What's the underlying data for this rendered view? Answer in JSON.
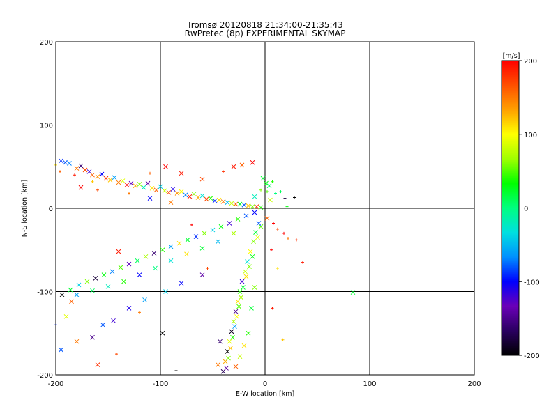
{
  "chart_data": {
    "type": "scatter",
    "title": "Tromsø 20120818 21:34:00-21:35:43",
    "subtitle": "RwPretec (8p) EXPERIMENTAL SKYMAP",
    "xlabel": "E-W location [km]",
    "ylabel": "N-S location [km]",
    "xlim": [
      -200,
      200
    ],
    "ylim": [
      -200,
      200
    ],
    "xticks": [
      -200,
      -100,
      0,
      100,
      200
    ],
    "yticks": [
      -200,
      -100,
      0,
      100,
      200
    ],
    "grid": true,
    "markers": [
      "x",
      "+"
    ],
    "colorbar": {
      "label": "[m/s]",
      "range": [
        -200,
        200
      ],
      "ticks": [
        200,
        100,
        0,
        -100,
        -200
      ],
      "colors": [
        "#000000",
        "#2a0060",
        "#6a00b8",
        "#0000ff",
        "#0090ff",
        "#00e0e0",
        "#00ff80",
        "#00ff00",
        "#a0ff00",
        "#ffff00",
        "#ffa000",
        "#ff5000",
        "#ff0000"
      ]
    },
    "points": [
      {
        "x": -195,
        "y": 57,
        "v": -90,
        "m": "x"
      },
      {
        "x": -191,
        "y": 55,
        "v": -80,
        "m": "x"
      },
      {
        "x": -187,
        "y": 54,
        "v": -70,
        "m": "x"
      },
      {
        "x": -180,
        "y": 48,
        "v": 150,
        "m": "x"
      },
      {
        "x": -176,
        "y": 51,
        "v": -160,
        "m": "x"
      },
      {
        "x": -172,
        "y": 46,
        "v": 170,
        "m": "x"
      },
      {
        "x": -168,
        "y": 44,
        "v": -120,
        "m": "x"
      },
      {
        "x": -165,
        "y": 40,
        "v": 160,
        "m": "x"
      },
      {
        "x": -160,
        "y": 38,
        "v": 140,
        "m": "x"
      },
      {
        "x": -156,
        "y": 41,
        "v": -100,
        "m": "x"
      },
      {
        "x": -152,
        "y": 36,
        "v": 180,
        "m": "x"
      },
      {
        "x": -148,
        "y": 34,
        "v": 120,
        "m": "x"
      },
      {
        "x": -144,
        "y": 37,
        "v": -60,
        "m": "x"
      },
      {
        "x": -140,
        "y": 31,
        "v": 150,
        "m": "x"
      },
      {
        "x": -136,
        "y": 33,
        "v": 90,
        "m": "x"
      },
      {
        "x": -132,
        "y": 28,
        "v": 200,
        "m": "x"
      },
      {
        "x": -128,
        "y": 30,
        "v": -130,
        "m": "x"
      },
      {
        "x": -124,
        "y": 27,
        "v": 130,
        "m": "x"
      },
      {
        "x": -120,
        "y": 29,
        "v": 60,
        "m": "x"
      },
      {
        "x": -116,
        "y": 25,
        "v": -20,
        "m": "x"
      },
      {
        "x": -112,
        "y": 30,
        "v": -140,
        "m": "x"
      },
      {
        "x": -108,
        "y": 24,
        "v": 110,
        "m": "x"
      },
      {
        "x": -104,
        "y": 22,
        "v": 160,
        "m": "x"
      },
      {
        "x": -100,
        "y": 26,
        "v": -40,
        "m": "x"
      },
      {
        "x": -96,
        "y": 21,
        "v": 80,
        "m": "x"
      },
      {
        "x": -92,
        "y": 19,
        "v": 170,
        "m": "x"
      },
      {
        "x": -88,
        "y": 23,
        "v": -110,
        "m": "x"
      },
      {
        "x": -84,
        "y": 18,
        "v": 140,
        "m": "x"
      },
      {
        "x": -80,
        "y": 20,
        "v": 100,
        "m": "x"
      },
      {
        "x": -76,
        "y": 16,
        "v": -70,
        "m": "x"
      },
      {
        "x": -72,
        "y": 14,
        "v": 190,
        "m": "x"
      },
      {
        "x": -68,
        "y": 17,
        "v": 60,
        "m": "x"
      },
      {
        "x": -64,
        "y": 13,
        "v": 130,
        "m": "x"
      },
      {
        "x": -60,
        "y": 15,
        "v": -30,
        "m": "x"
      },
      {
        "x": -56,
        "y": 11,
        "v": 170,
        "m": "x"
      },
      {
        "x": -52,
        "y": 12,
        "v": 40,
        "m": "x"
      },
      {
        "x": -48,
        "y": 9,
        "v": -90,
        "m": "x"
      },
      {
        "x": -44,
        "y": 10,
        "v": 110,
        "m": "x"
      },
      {
        "x": -40,
        "y": 8,
        "v": 150,
        "m": "x"
      },
      {
        "x": -36,
        "y": 7,
        "v": -50,
        "m": "x"
      },
      {
        "x": -32,
        "y": 6,
        "v": 80,
        "m": "x"
      },
      {
        "x": -28,
        "y": 5,
        "v": 160,
        "m": "x"
      },
      {
        "x": -24,
        "y": 5,
        "v": 20,
        "m": "x"
      },
      {
        "x": -20,
        "y": 4,
        "v": -80,
        "m": "x"
      },
      {
        "x": -16,
        "y": 3,
        "v": 120,
        "m": "x"
      },
      {
        "x": -12,
        "y": 2,
        "v": 60,
        "m": "x"
      },
      {
        "x": -8,
        "y": 2,
        "v": 180,
        "m": "x"
      },
      {
        "x": -4,
        "y": 1,
        "v": 40,
        "m": "x"
      },
      {
        "x": -200,
        "y": 52,
        "v": 110,
        "m": "+"
      },
      {
        "x": -196,
        "y": 44,
        "v": 160,
        "m": "+"
      },
      {
        "x": -182,
        "y": 40,
        "v": 190,
        "m": "+"
      },
      {
        "x": -176,
        "y": 25,
        "v": 200,
        "m": "x"
      },
      {
        "x": -160,
        "y": 22,
        "v": 170,
        "m": "+"
      },
      {
        "x": -130,
        "y": 18,
        "v": 150,
        "m": "+"
      },
      {
        "x": -110,
        "y": 42,
        "v": 160,
        "m": "+"
      },
      {
        "x": -95,
        "y": 50,
        "v": 200,
        "m": "x"
      },
      {
        "x": -80,
        "y": 42,
        "v": 190,
        "m": "x"
      },
      {
        "x": -60,
        "y": 35,
        "v": 170,
        "m": "x"
      },
      {
        "x": -40,
        "y": 44,
        "v": 180,
        "m": "+"
      },
      {
        "x": -30,
        "y": 50,
        "v": 190,
        "m": "x"
      },
      {
        "x": -22,
        "y": 52,
        "v": 160,
        "m": "x"
      },
      {
        "x": -12,
        "y": 55,
        "v": 200,
        "m": "x"
      },
      {
        "x": -90,
        "y": 7,
        "v": 150,
        "m": "x"
      },
      {
        "x": -110,
        "y": 12,
        "v": -100,
        "m": "x"
      },
      {
        "x": -165,
        "y": 32,
        "v": 120,
        "m": "+"
      },
      {
        "x": -2,
        "y": 36,
        "v": 20,
        "m": "x"
      },
      {
        "x": 1,
        "y": 30,
        "v": 30,
        "m": "x"
      },
      {
        "x": 4,
        "y": 27,
        "v": 10,
        "m": "x"
      },
      {
        "x": 7,
        "y": 32,
        "v": 40,
        "m": "+"
      },
      {
        "x": -4,
        "y": 22,
        "v": 60,
        "m": "+"
      },
      {
        "x": 10,
        "y": 18,
        "v": 0,
        "m": "+"
      },
      {
        "x": 15,
        "y": 20,
        "v": 10,
        "m": "+"
      },
      {
        "x": 19,
        "y": 12,
        "v": -180,
        "m": "+"
      },
      {
        "x": 28,
        "y": 13,
        "v": -200,
        "m": "+"
      },
      {
        "x": 21,
        "y": 2,
        "v": 30,
        "m": "+"
      },
      {
        "x": 5,
        "y": 10,
        "v": 80,
        "m": "x"
      },
      {
        "x": -10,
        "y": 14,
        "v": -20,
        "m": "x"
      },
      {
        "x": 2,
        "y": 20,
        "v": 50,
        "m": "+"
      },
      {
        "x": 2,
        "y": -12,
        "v": 160,
        "m": "x"
      },
      {
        "x": 8,
        "y": -18,
        "v": 200,
        "m": "+"
      },
      {
        "x": 12,
        "y": -25,
        "v": 170,
        "m": "+"
      },
      {
        "x": 18,
        "y": -30,
        "v": 200,
        "m": "+"
      },
      {
        "x": 22,
        "y": -36,
        "v": 150,
        "m": "+"
      },
      {
        "x": 30,
        "y": -38,
        "v": 180,
        "m": "+"
      },
      {
        "x": 36,
        "y": -65,
        "v": 190,
        "m": "+"
      },
      {
        "x": 6,
        "y": -50,
        "v": 200,
        "m": "+"
      },
      {
        "x": 12,
        "y": -72,
        "v": 110,
        "m": "+"
      },
      {
        "x": 7,
        "y": -120,
        "v": 190,
        "m": "+"
      },
      {
        "x": 17,
        "y": -158,
        "v": 120,
        "m": "+"
      },
      {
        "x": 84,
        "y": -101,
        "v": 20,
        "m": "x"
      },
      {
        "x": -6,
        "y": -18,
        "v": -80,
        "m": "x"
      },
      {
        "x": -9,
        "y": -29,
        "v": 20,
        "m": "x"
      },
      {
        "x": -11,
        "y": -40,
        "v": 60,
        "m": "x"
      },
      {
        "x": -14,
        "y": -52,
        "v": 100,
        "m": "x"
      },
      {
        "x": -17,
        "y": -64,
        "v": -30,
        "m": "x"
      },
      {
        "x": -19,
        "y": -76,
        "v": 80,
        "m": "x"
      },
      {
        "x": -22,
        "y": -88,
        "v": -120,
        "m": "x"
      },
      {
        "x": -24,
        "y": -100,
        "v": 40,
        "m": "x"
      },
      {
        "x": -26,
        "y": -112,
        "v": 110,
        "m": "x"
      },
      {
        "x": -28,
        "y": -124,
        "v": -150,
        "m": "x"
      },
      {
        "x": -30,
        "y": -136,
        "v": 70,
        "m": "x"
      },
      {
        "x": -32,
        "y": -148,
        "v": -190,
        "m": "x"
      },
      {
        "x": -34,
        "y": -160,
        "v": 90,
        "m": "x"
      },
      {
        "x": -36,
        "y": -172,
        "v": -200,
        "m": "x"
      },
      {
        "x": -38,
        "y": -184,
        "v": 130,
        "m": "x"
      },
      {
        "x": -40,
        "y": -196,
        "v": -170,
        "m": "x"
      },
      {
        "x": -4,
        "y": -22,
        "v": 50,
        "m": "x"
      },
      {
        "x": -7,
        "y": -35,
        "v": 90,
        "m": "x"
      },
      {
        "x": -12,
        "y": -58,
        "v": 30,
        "m": "x"
      },
      {
        "x": -15,
        "y": -70,
        "v": 60,
        "m": "x"
      },
      {
        "x": -18,
        "y": -82,
        "v": 110,
        "m": "x"
      },
      {
        "x": -21,
        "y": -95,
        "v": 20,
        "m": "x"
      },
      {
        "x": -23,
        "y": -107,
        "v": 70,
        "m": "x"
      },
      {
        "x": -25,
        "y": -118,
        "v": 50,
        "m": "x"
      },
      {
        "x": -27,
        "y": -130,
        "v": 100,
        "m": "x"
      },
      {
        "x": -29,
        "y": -142,
        "v": -60,
        "m": "x"
      },
      {
        "x": -31,
        "y": -155,
        "v": 40,
        "m": "x"
      },
      {
        "x": -33,
        "y": -168,
        "v": 120,
        "m": "x"
      },
      {
        "x": -35,
        "y": -180,
        "v": 60,
        "m": "x"
      },
      {
        "x": -37,
        "y": -192,
        "v": -140,
        "m": "x"
      },
      {
        "x": -28,
        "y": -190,
        "v": 160,
        "m": "x"
      },
      {
        "x": -24,
        "y": -178,
        "v": 80,
        "m": "x"
      },
      {
        "x": -20,
        "y": -165,
        "v": 110,
        "m": "x"
      },
      {
        "x": -16,
        "y": -150,
        "v": 40,
        "m": "x"
      },
      {
        "x": -13,
        "y": -120,
        "v": 20,
        "m": "x"
      },
      {
        "x": -10,
        "y": -95,
        "v": 60,
        "m": "x"
      },
      {
        "x": -43,
        "y": -160,
        "v": -160,
        "m": "x"
      },
      {
        "x": -45,
        "y": -188,
        "v": 150,
        "m": "x"
      },
      {
        "x": -10,
        "y": -5,
        "v": -100,
        "m": "x"
      },
      {
        "x": -18,
        "y": -9,
        "v": -80,
        "m": "x"
      },
      {
        "x": -26,
        "y": -13,
        "v": 40,
        "m": "x"
      },
      {
        "x": -34,
        "y": -18,
        "v": -120,
        "m": "x"
      },
      {
        "x": -42,
        "y": -22,
        "v": 30,
        "m": "x"
      },
      {
        "x": -50,
        "y": -26,
        "v": -40,
        "m": "x"
      },
      {
        "x": -58,
        "y": -30,
        "v": 60,
        "m": "x"
      },
      {
        "x": -66,
        "y": -34,
        "v": -90,
        "m": "x"
      },
      {
        "x": -74,
        "y": -38,
        "v": 20,
        "m": "x"
      },
      {
        "x": -82,
        "y": -42,
        "v": 110,
        "m": "x"
      },
      {
        "x": -90,
        "y": -46,
        "v": -60,
        "m": "x"
      },
      {
        "x": -98,
        "y": -50,
        "v": 40,
        "m": "x"
      },
      {
        "x": -106,
        "y": -54,
        "v": -160,
        "m": "x"
      },
      {
        "x": -114,
        "y": -58,
        "v": 70,
        "m": "x"
      },
      {
        "x": -122,
        "y": -63,
        "v": 10,
        "m": "x"
      },
      {
        "x": -130,
        "y": -67,
        "v": -130,
        "m": "x"
      },
      {
        "x": -138,
        "y": -71,
        "v": 50,
        "m": "x"
      },
      {
        "x": -146,
        "y": -76,
        "v": -70,
        "m": "x"
      },
      {
        "x": -154,
        "y": -80,
        "v": 30,
        "m": "x"
      },
      {
        "x": -162,
        "y": -84,
        "v": -180,
        "m": "x"
      },
      {
        "x": -170,
        "y": -88,
        "v": 60,
        "m": "x"
      },
      {
        "x": -178,
        "y": -92,
        "v": -40,
        "m": "x"
      },
      {
        "x": -186,
        "y": -98,
        "v": 20,
        "m": "x"
      },
      {
        "x": -194,
        "y": -104,
        "v": -200,
        "m": "x"
      },
      {
        "x": -30,
        "y": -30,
        "v": 70,
        "m": "x"
      },
      {
        "x": -45,
        "y": -40,
        "v": -50,
        "m": "x"
      },
      {
        "x": -60,
        "y": -48,
        "v": 20,
        "m": "x"
      },
      {
        "x": -75,
        "y": -55,
        "v": 110,
        "m": "x"
      },
      {
        "x": -90,
        "y": -63,
        "v": -30,
        "m": "x"
      },
      {
        "x": -105,
        "y": -72,
        "v": 0,
        "m": "x"
      },
      {
        "x": -120,
        "y": -80,
        "v": -100,
        "m": "x"
      },
      {
        "x": -135,
        "y": -88,
        "v": 40,
        "m": "x"
      },
      {
        "x": -150,
        "y": -94,
        "v": -20,
        "m": "x"
      },
      {
        "x": -165,
        "y": -99,
        "v": 10,
        "m": "x"
      },
      {
        "x": -180,
        "y": -104,
        "v": -60,
        "m": "x"
      },
      {
        "x": -60,
        "y": -80,
        "v": -140,
        "m": "x"
      },
      {
        "x": -80,
        "y": -90,
        "v": -100,
        "m": "x"
      },
      {
        "x": -95,
        "y": -100,
        "v": -40,
        "m": "x"
      },
      {
        "x": -115,
        "y": -110,
        "v": -60,
        "m": "x"
      },
      {
        "x": -130,
        "y": -120,
        "v": -110,
        "m": "x"
      },
      {
        "x": -145,
        "y": -135,
        "v": -120,
        "m": "x"
      },
      {
        "x": -155,
        "y": -140,
        "v": -80,
        "m": "x"
      },
      {
        "x": -165,
        "y": -155,
        "v": -150,
        "m": "x"
      },
      {
        "x": -180,
        "y": -160,
        "v": 150,
        "m": "x"
      },
      {
        "x": -160,
        "y": -188,
        "v": 180,
        "m": "x"
      },
      {
        "x": -185,
        "y": -112,
        "v": 160,
        "m": "x"
      },
      {
        "x": -140,
        "y": -52,
        "v": 190,
        "m": "x"
      },
      {
        "x": -70,
        "y": -20,
        "v": 200,
        "m": "+"
      },
      {
        "x": -55,
        "y": -72,
        "v": 170,
        "m": "+"
      },
      {
        "x": -98,
        "y": -150,
        "v": -200,
        "m": "x"
      },
      {
        "x": -190,
        "y": -130,
        "v": 90,
        "m": "x"
      },
      {
        "x": -195,
        "y": -170,
        "v": -80,
        "m": "x"
      },
      {
        "x": -142,
        "y": -175,
        "v": 170,
        "m": "+"
      },
      {
        "x": -120,
        "y": -125,
        "v": 150,
        "m": "+"
      },
      {
        "x": -85,
        "y": -195,
        "v": -200,
        "m": "+"
      },
      {
        "x": -200,
        "y": -140,
        "v": -90,
        "m": "+"
      }
    ]
  }
}
